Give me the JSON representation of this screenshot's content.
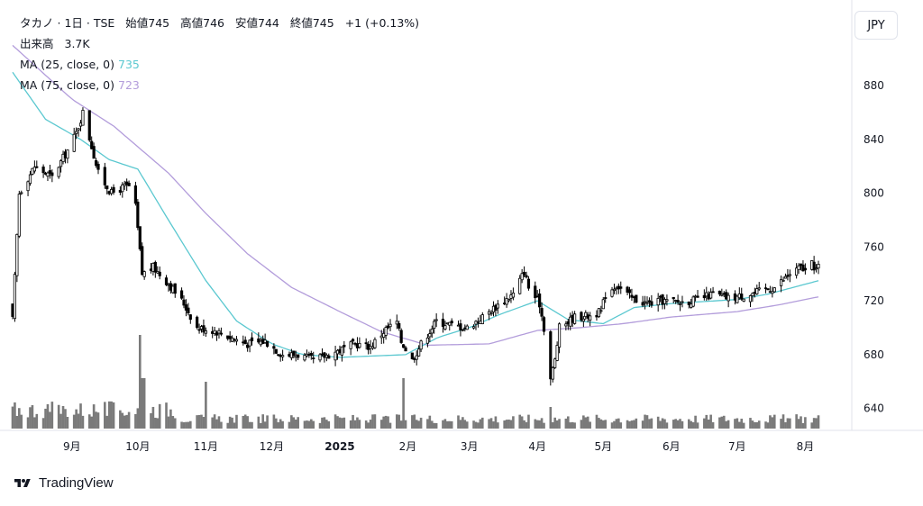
{
  "header": {
    "name": "タカノ",
    "interval": "1日",
    "exchange": "TSE",
    "open_label": "始値",
    "open": "745",
    "high_label": "高値",
    "high": "746",
    "low_label": "安値",
    "low": "744",
    "close_label": "終値",
    "close": "745",
    "change": "+1 (+0.13%)",
    "volume_label": "出来高",
    "volume": "3.7K",
    "ma1_label": "MA (25, close, 0)",
    "ma1_value": "735",
    "ma2_label": "MA (75, close, 0)",
    "ma2_value": "723"
  },
  "currency_button": "JPY",
  "branding": "TradingView",
  "colors": {
    "up": "#ffffff",
    "down": "#000000",
    "outline": "#000000",
    "ma25": "#5bc8d0",
    "ma75": "#b39ddb",
    "volume": "#7a7a7a",
    "axis_text": "#131722"
  },
  "chart_data": {
    "type": "candlestick",
    "ylim": [
      625,
      925
    ],
    "y_ticks": [
      640,
      680,
      720,
      760,
      800,
      840,
      880
    ],
    "x_ticks": [
      {
        "label": "9月",
        "at": "2024-09-01"
      },
      {
        "label": "10月",
        "at": "2024-10-01"
      },
      {
        "label": "11月",
        "at": "2024-11-01"
      },
      {
        "label": "12月",
        "at": "2024-12-01"
      },
      {
        "label": "2025",
        "at": "2025-01-01"
      },
      {
        "label": "2月",
        "at": "2025-02-01"
      },
      {
        "label": "3月",
        "at": "2025-03-01"
      },
      {
        "label": "4月",
        "at": "2025-04-01"
      },
      {
        "label": "5月",
        "at": "2025-05-01"
      },
      {
        "label": "6月",
        "at": "2025-06-01"
      },
      {
        "label": "7月",
        "at": "2025-07-01"
      },
      {
        "label": "8月",
        "at": "2025-08-01"
      }
    ],
    "x_range": [
      "2024-08-05",
      "2025-08-07"
    ],
    "close_anchors": [
      [
        "2024-08-05",
        706
      ],
      [
        "2024-08-08",
        800
      ],
      [
        "2024-08-15",
        820
      ],
      [
        "2024-08-23",
        812
      ],
      [
        "2024-08-30",
        832
      ],
      [
        "2024-09-03",
        845
      ],
      [
        "2024-09-06",
        860
      ],
      [
        "2024-09-10",
        835
      ],
      [
        "2024-09-13",
        815
      ],
      [
        "2024-09-19",
        800
      ],
      [
        "2024-09-25",
        805
      ],
      [
        "2024-09-27",
        805
      ],
      [
        "2024-09-30",
        790
      ],
      [
        "2024-10-03",
        740
      ],
      [
        "2024-10-08",
        745
      ],
      [
        "2024-10-15",
        733
      ],
      [
        "2024-10-22",
        718
      ],
      [
        "2024-10-28",
        700
      ],
      [
        "2024-11-05",
        698
      ],
      [
        "2024-11-12",
        693
      ],
      [
        "2024-11-20",
        688
      ],
      [
        "2024-11-28",
        690
      ],
      [
        "2024-12-06",
        680
      ],
      [
        "2024-12-13",
        680
      ],
      [
        "2024-12-20",
        676
      ],
      [
        "2024-12-27",
        680
      ],
      [
        "2025-01-08",
        688
      ],
      [
        "2025-01-15",
        686
      ],
      [
        "2025-01-22",
        699
      ],
      [
        "2025-01-27",
        704
      ],
      [
        "2025-01-29",
        690
      ],
      [
        "2025-02-03",
        676
      ],
      [
        "2025-02-07",
        688
      ],
      [
        "2025-02-14",
        705
      ],
      [
        "2025-02-21",
        702
      ],
      [
        "2025-02-28",
        700
      ],
      [
        "2025-03-07",
        708
      ],
      [
        "2025-03-14",
        717
      ],
      [
        "2025-03-21",
        725
      ],
      [
        "2025-03-26",
        742
      ],
      [
        "2025-03-28",
        730
      ],
      [
        "2025-04-02",
        718
      ],
      [
        "2025-04-04",
        700
      ],
      [
        "2025-04-07",
        662
      ],
      [
        "2025-04-09",
        676
      ],
      [
        "2025-04-11",
        700
      ],
      [
        "2025-04-18",
        708
      ],
      [
        "2025-04-25",
        709
      ],
      [
        "2025-04-30",
        712
      ],
      [
        "2025-05-02",
        725
      ],
      [
        "2025-05-07",
        732
      ],
      [
        "2025-05-14",
        722
      ],
      [
        "2025-05-21",
        718
      ],
      [
        "2025-05-28",
        720
      ],
      [
        "2025-06-05",
        719
      ],
      [
        "2025-06-13",
        721
      ],
      [
        "2025-06-20",
        725
      ],
      [
        "2025-06-27",
        722
      ],
      [
        "2025-07-04",
        724
      ],
      [
        "2025-07-11",
        727
      ],
      [
        "2025-07-18",
        730
      ],
      [
        "2025-07-25",
        740
      ],
      [
        "2025-07-30",
        745
      ],
      [
        "2025-08-01",
        742
      ],
      [
        "2025-08-04",
        747
      ],
      [
        "2025-08-06",
        744
      ],
      [
        "2025-08-07",
        745
      ]
    ],
    "ma25_anchors": [
      [
        "2024-08-05",
        890
      ],
      [
        "2024-08-20",
        855
      ],
      [
        "2024-09-05",
        840
      ],
      [
        "2024-09-18",
        825
      ],
      [
        "2024-10-01",
        818
      ],
      [
        "2024-10-15",
        780
      ],
      [
        "2024-11-01",
        735
      ],
      [
        "2024-11-15",
        705
      ],
      [
        "2024-12-01",
        688
      ],
      [
        "2024-12-15",
        680
      ],
      [
        "2025-01-01",
        678
      ],
      [
        "2025-01-31",
        680
      ],
      [
        "2025-02-15",
        693
      ],
      [
        "2025-03-01",
        700
      ],
      [
        "2025-03-15",
        710
      ],
      [
        "2025-04-01",
        720
      ],
      [
        "2025-04-15",
        706
      ],
      [
        "2025-05-01",
        703
      ],
      [
        "2025-05-15",
        715
      ],
      [
        "2025-06-01",
        718
      ],
      [
        "2025-07-01",
        721
      ],
      [
        "2025-07-15",
        725
      ],
      [
        "2025-08-07",
        735
      ]
    ],
    "ma75_anchors": [
      [
        "2024-08-05",
        910
      ],
      [
        "2024-09-01",
        870
      ],
      [
        "2024-09-20",
        850
      ],
      [
        "2024-10-15",
        815
      ],
      [
        "2024-11-01",
        785
      ],
      [
        "2024-11-20",
        755
      ],
      [
        "2024-12-10",
        730
      ],
      [
        "2025-01-01",
        712
      ],
      [
        "2025-01-20",
        697
      ],
      [
        "2025-02-10",
        687
      ],
      [
        "2025-03-10",
        688
      ],
      [
        "2025-04-01",
        698
      ],
      [
        "2025-04-20",
        700
      ],
      [
        "2025-05-10",
        703
      ],
      [
        "2025-06-01",
        708
      ],
      [
        "2025-07-01",
        712
      ],
      [
        "2025-07-20",
        717
      ],
      [
        "2025-08-07",
        723
      ]
    ],
    "volume_note": "relative bar heights, last bar = 3.7K"
  }
}
